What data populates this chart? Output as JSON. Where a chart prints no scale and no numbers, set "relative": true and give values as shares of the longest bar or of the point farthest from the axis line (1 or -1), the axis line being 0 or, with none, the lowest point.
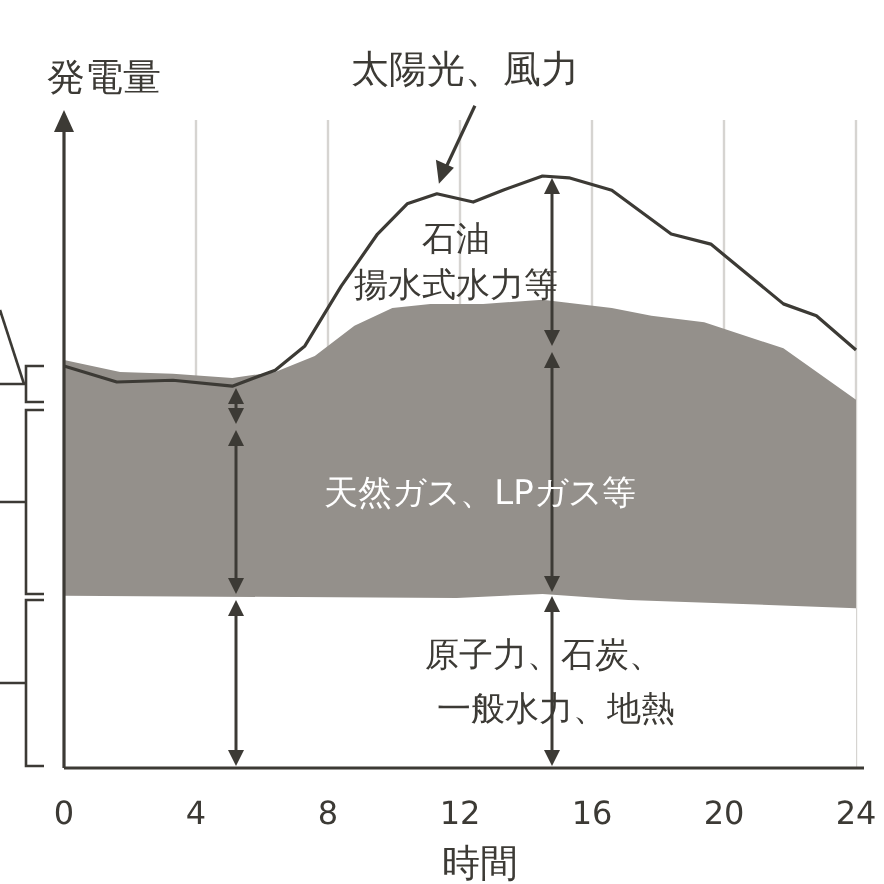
{
  "chart_data": {
    "type": "area",
    "relative": true,
    "xlabel": "時間",
    "ylabel": "発電量",
    "xlim": [
      0,
      24
    ],
    "xticks": [
      0,
      4,
      8,
      12,
      16,
      20,
      24
    ],
    "grid": "x",
    "series": [
      {
        "type": "area",
        "color": "#94908b",
        "x": [
          0,
          1.7,
          3.3,
          5.1,
          6.4,
          7.6,
          8.8,
          9.95,
          11.1,
          12.7,
          14.5,
          16.6,
          17.8,
          19.4,
          21.8,
          24
        ],
        "values": [
          0.689,
          0.669,
          0.666,
          0.659,
          0.669,
          0.696,
          0.747,
          0.777,
          0.784,
          0.784,
          0.791,
          0.777,
          0.764,
          0.753,
          0.709,
          0.622
        ]
      },
      {
        "type": "area",
        "color": "#ffffff",
        "x": [
          0,
          11.9,
          14.5,
          17.1,
          24
        ],
        "values": [
          0.291,
          0.287,
          0.294,
          0.284,
          0.27
        ]
      },
      {
        "type": "line",
        "color": "#3c3a35",
        "x": [
          0,
          1.6,
          3.3,
          5.1,
          6.4,
          7.3,
          8.4,
          9.5,
          10.4,
          11.3,
          12.4,
          13.3,
          14.5,
          15.3,
          16.6,
          18.4,
          19.6,
          21.8,
          22.8,
          24
        ],
        "values": [
          0.679,
          0.652,
          0.655,
          0.645,
          0.672,
          0.713,
          0.814,
          0.902,
          0.953,
          0.97,
          0.956,
          0.976,
          1,
          0.997,
          0.976,
          0.902,
          0.885,
          0.784,
          0.764,
          0.706
        ]
      }
    ],
    "annotations": [
      {
        "text": "太陽光、風力",
        "x": 11.3,
        "y": 0.97
      },
      "石油",
      "揚水式水力等",
      "天然ガス、LPガス等",
      "原子力、石炭、",
      "一般水力、地熱"
    ]
  }
}
